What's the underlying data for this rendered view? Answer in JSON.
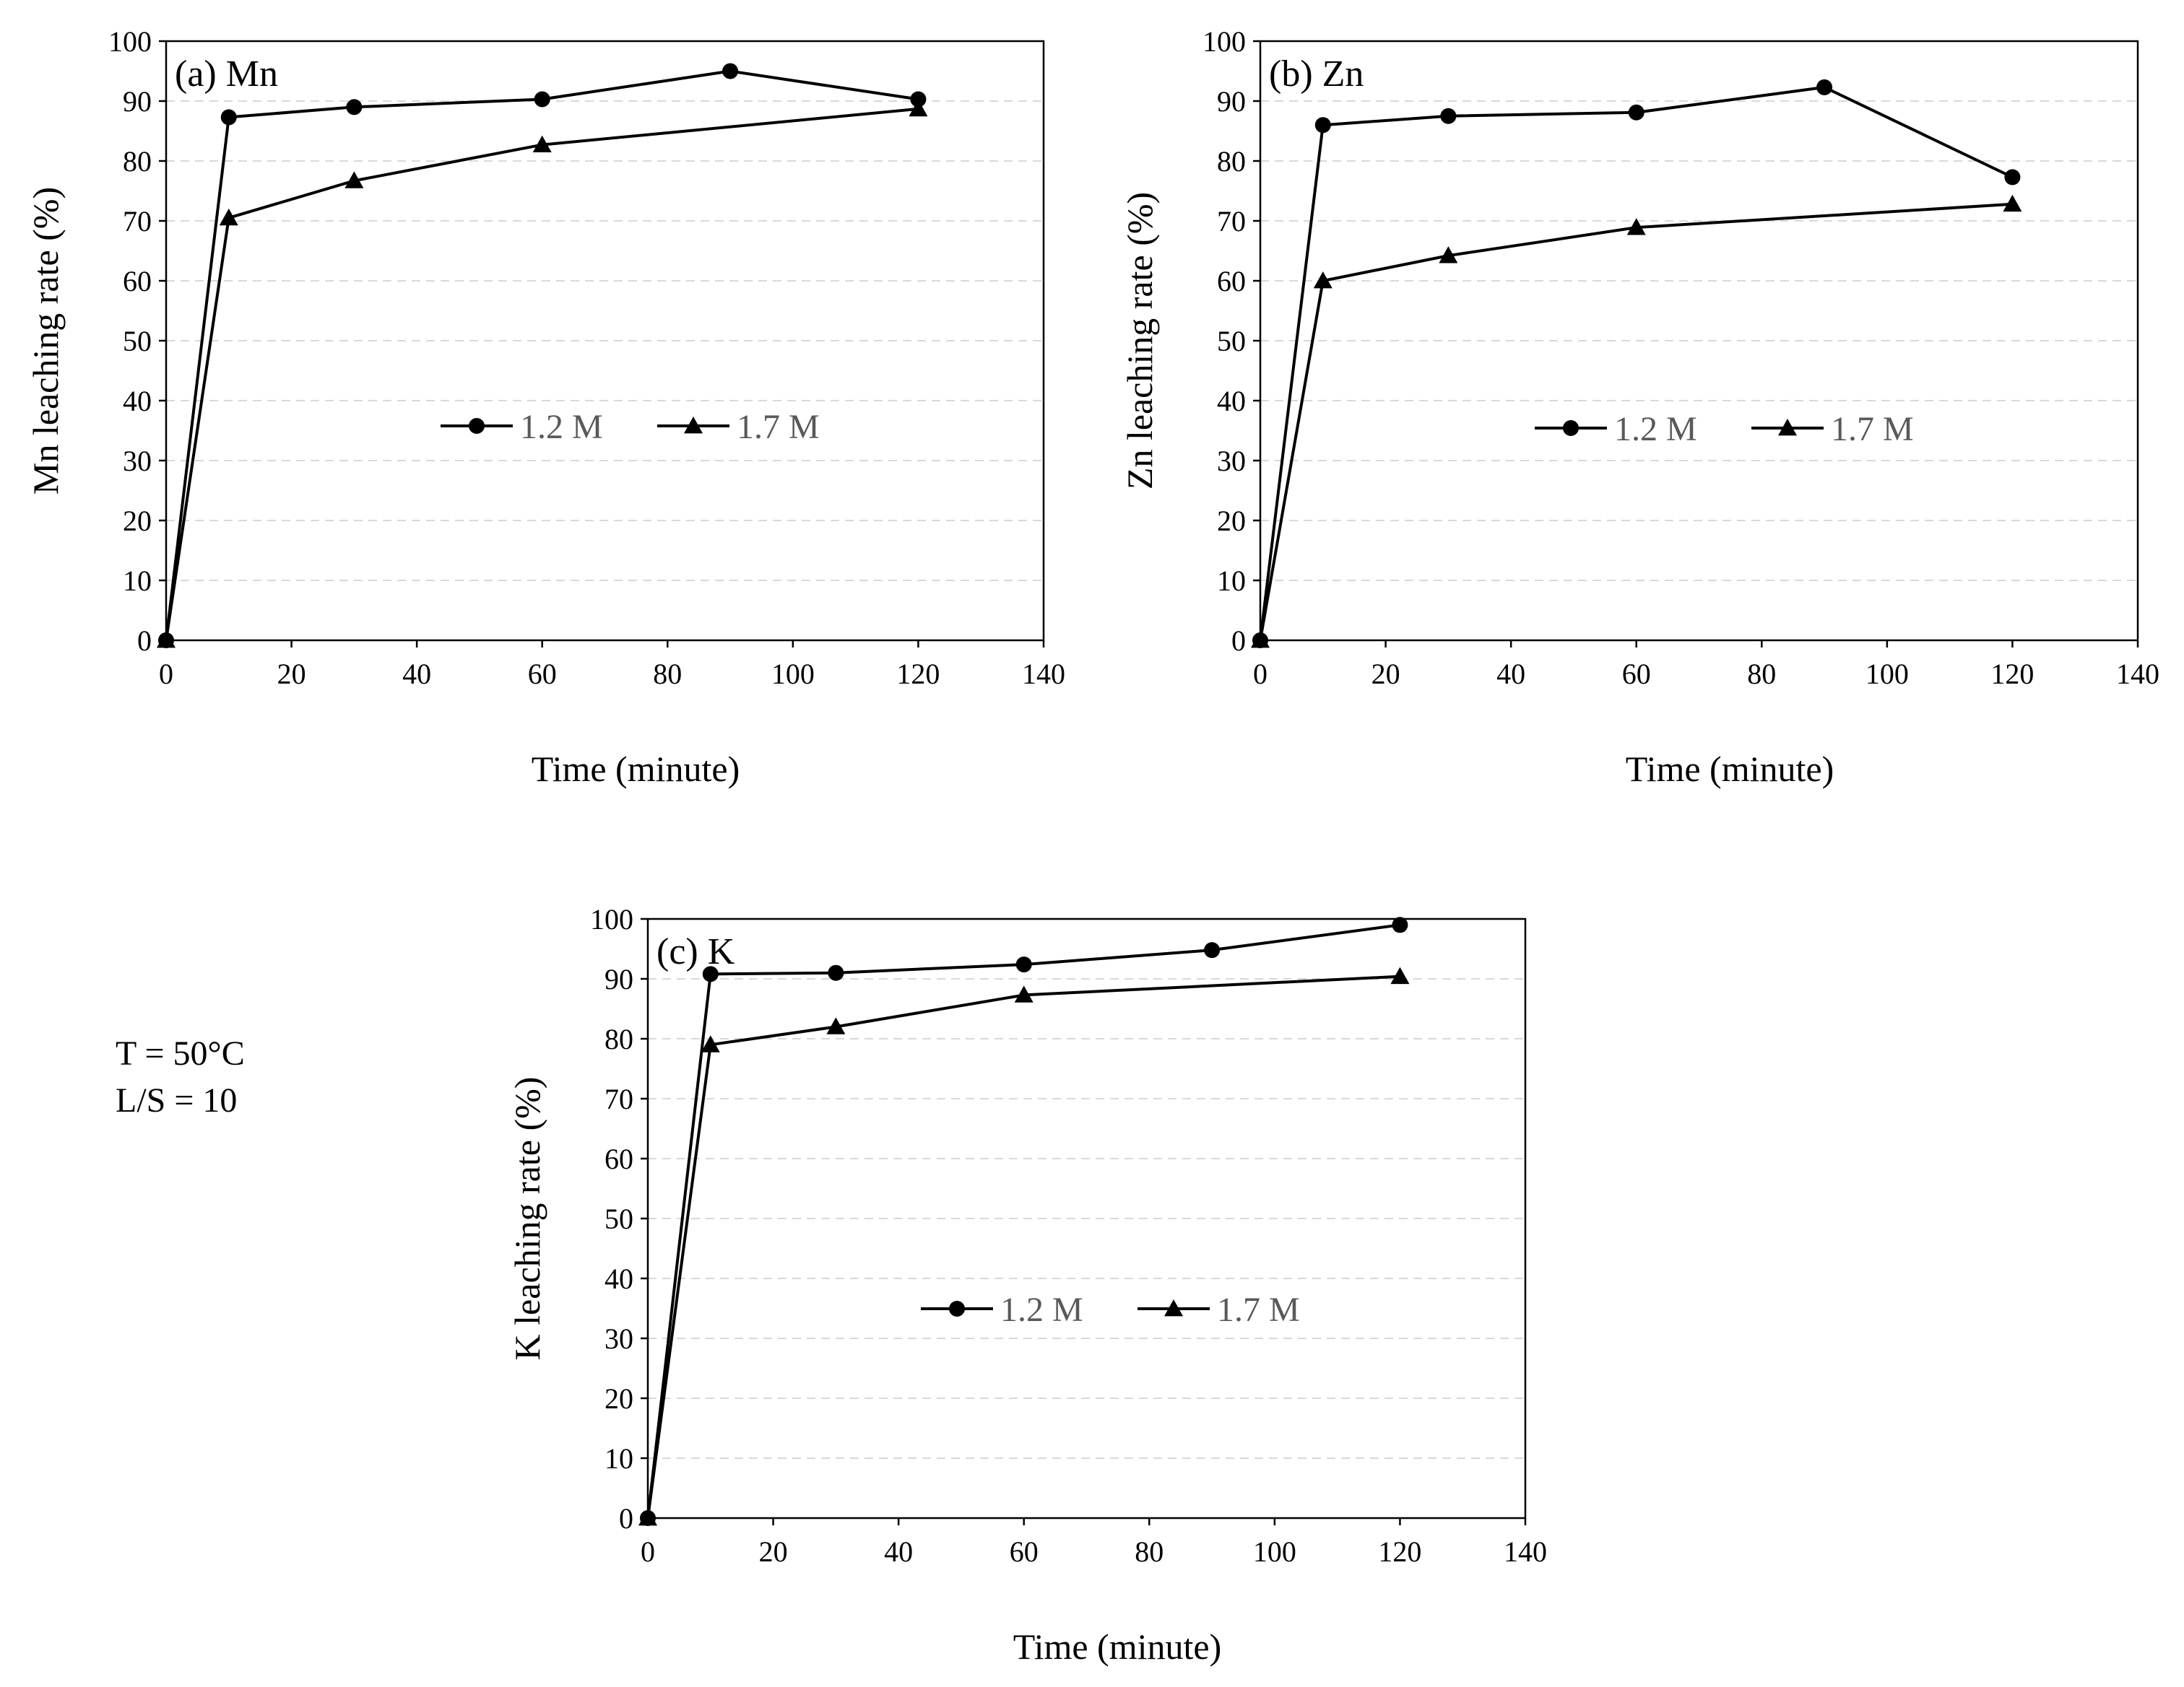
{
  "colors": {
    "series_line": "#000000",
    "legend_text": "#595959",
    "grid": "#d9d9d9"
  },
  "conditions": {
    "temperature": "T = 50°C",
    "ratio": "L/S = 10"
  },
  "chart_data": [
    {
      "type": "line",
      "panel_label": "(a) Mn",
      "xlabel": "Time (minute)",
      "ylabel": "Mn leaching rate (%)",
      "xlim": [
        0,
        140
      ],
      "ylim": [
        0,
        100
      ],
      "xticks": [
        "0",
        "20",
        "40",
        "60",
        "80",
        "100",
        "120",
        "140"
      ],
      "yticks": [
        "0",
        "10",
        "20",
        "30",
        "40",
        "50",
        "60",
        "70",
        "80",
        "90",
        "100"
      ],
      "grid": "horizontal dashed",
      "legend_position": "center",
      "series": [
        {
          "name": "1.2 M",
          "marker": "circle",
          "x": [
            0,
            10,
            30,
            60,
            90,
            120
          ],
          "y": [
            0,
            87.3,
            89.0,
            90.3,
            95.0,
            90.3
          ]
        },
        {
          "name": "1.7 M",
          "marker": "triangle",
          "x": [
            0,
            10,
            30,
            60,
            120
          ],
          "y": [
            0,
            70.5,
            76.7,
            82.7,
            88.7
          ]
        }
      ]
    },
    {
      "type": "line",
      "panel_label": "(b) Zn",
      "xlabel": "Time (minute)",
      "ylabel": "Zn leaching rate (%)",
      "xlim": [
        0,
        140
      ],
      "ylim": [
        0,
        100
      ],
      "xticks": [
        "0",
        "20",
        "40",
        "60",
        "80",
        "100",
        "120",
        "140"
      ],
      "yticks": [
        "0",
        "10",
        "20",
        "30",
        "40",
        "50",
        "60",
        "70",
        "80",
        "90",
        "100"
      ],
      "grid": "horizontal dashed",
      "legend_position": "center",
      "series": [
        {
          "name": "1.2 M",
          "marker": "circle",
          "x": [
            0,
            10,
            30,
            60,
            90,
            120
          ],
          "y": [
            0,
            86.0,
            87.5,
            88.1,
            92.3,
            77.3
          ]
        },
        {
          "name": "1.7 M",
          "marker": "triangle",
          "x": [
            0,
            10,
            30,
            60,
            120
          ],
          "y": [
            0,
            60.0,
            64.2,
            68.9,
            72.8
          ]
        }
      ]
    },
    {
      "type": "line",
      "panel_label": "(c) K",
      "xlabel": "Time (minute)",
      "ylabel": "K leaching rate (%)",
      "xlim": [
        0,
        140
      ],
      "ylim": [
        0,
        100
      ],
      "xticks": [
        "0",
        "20",
        "40",
        "60",
        "80",
        "100",
        "120",
        "140"
      ],
      "yticks": [
        "0",
        "10",
        "20",
        "30",
        "40",
        "50",
        "60",
        "70",
        "80",
        "90",
        "100"
      ],
      "grid": "horizontal dashed",
      "legend_position": "center",
      "series": [
        {
          "name": "1.2 M",
          "marker": "circle",
          "x": [
            0,
            10,
            30,
            60,
            90,
            120
          ],
          "y": [
            0,
            90.8,
            91.0,
            92.4,
            94.8,
            99.0
          ]
        },
        {
          "name": "1.7 M",
          "marker": "triangle",
          "x": [
            0,
            10,
            30,
            60,
            120
          ],
          "y": [
            0,
            79.0,
            82.0,
            87.3,
            90.4
          ]
        }
      ]
    }
  ]
}
